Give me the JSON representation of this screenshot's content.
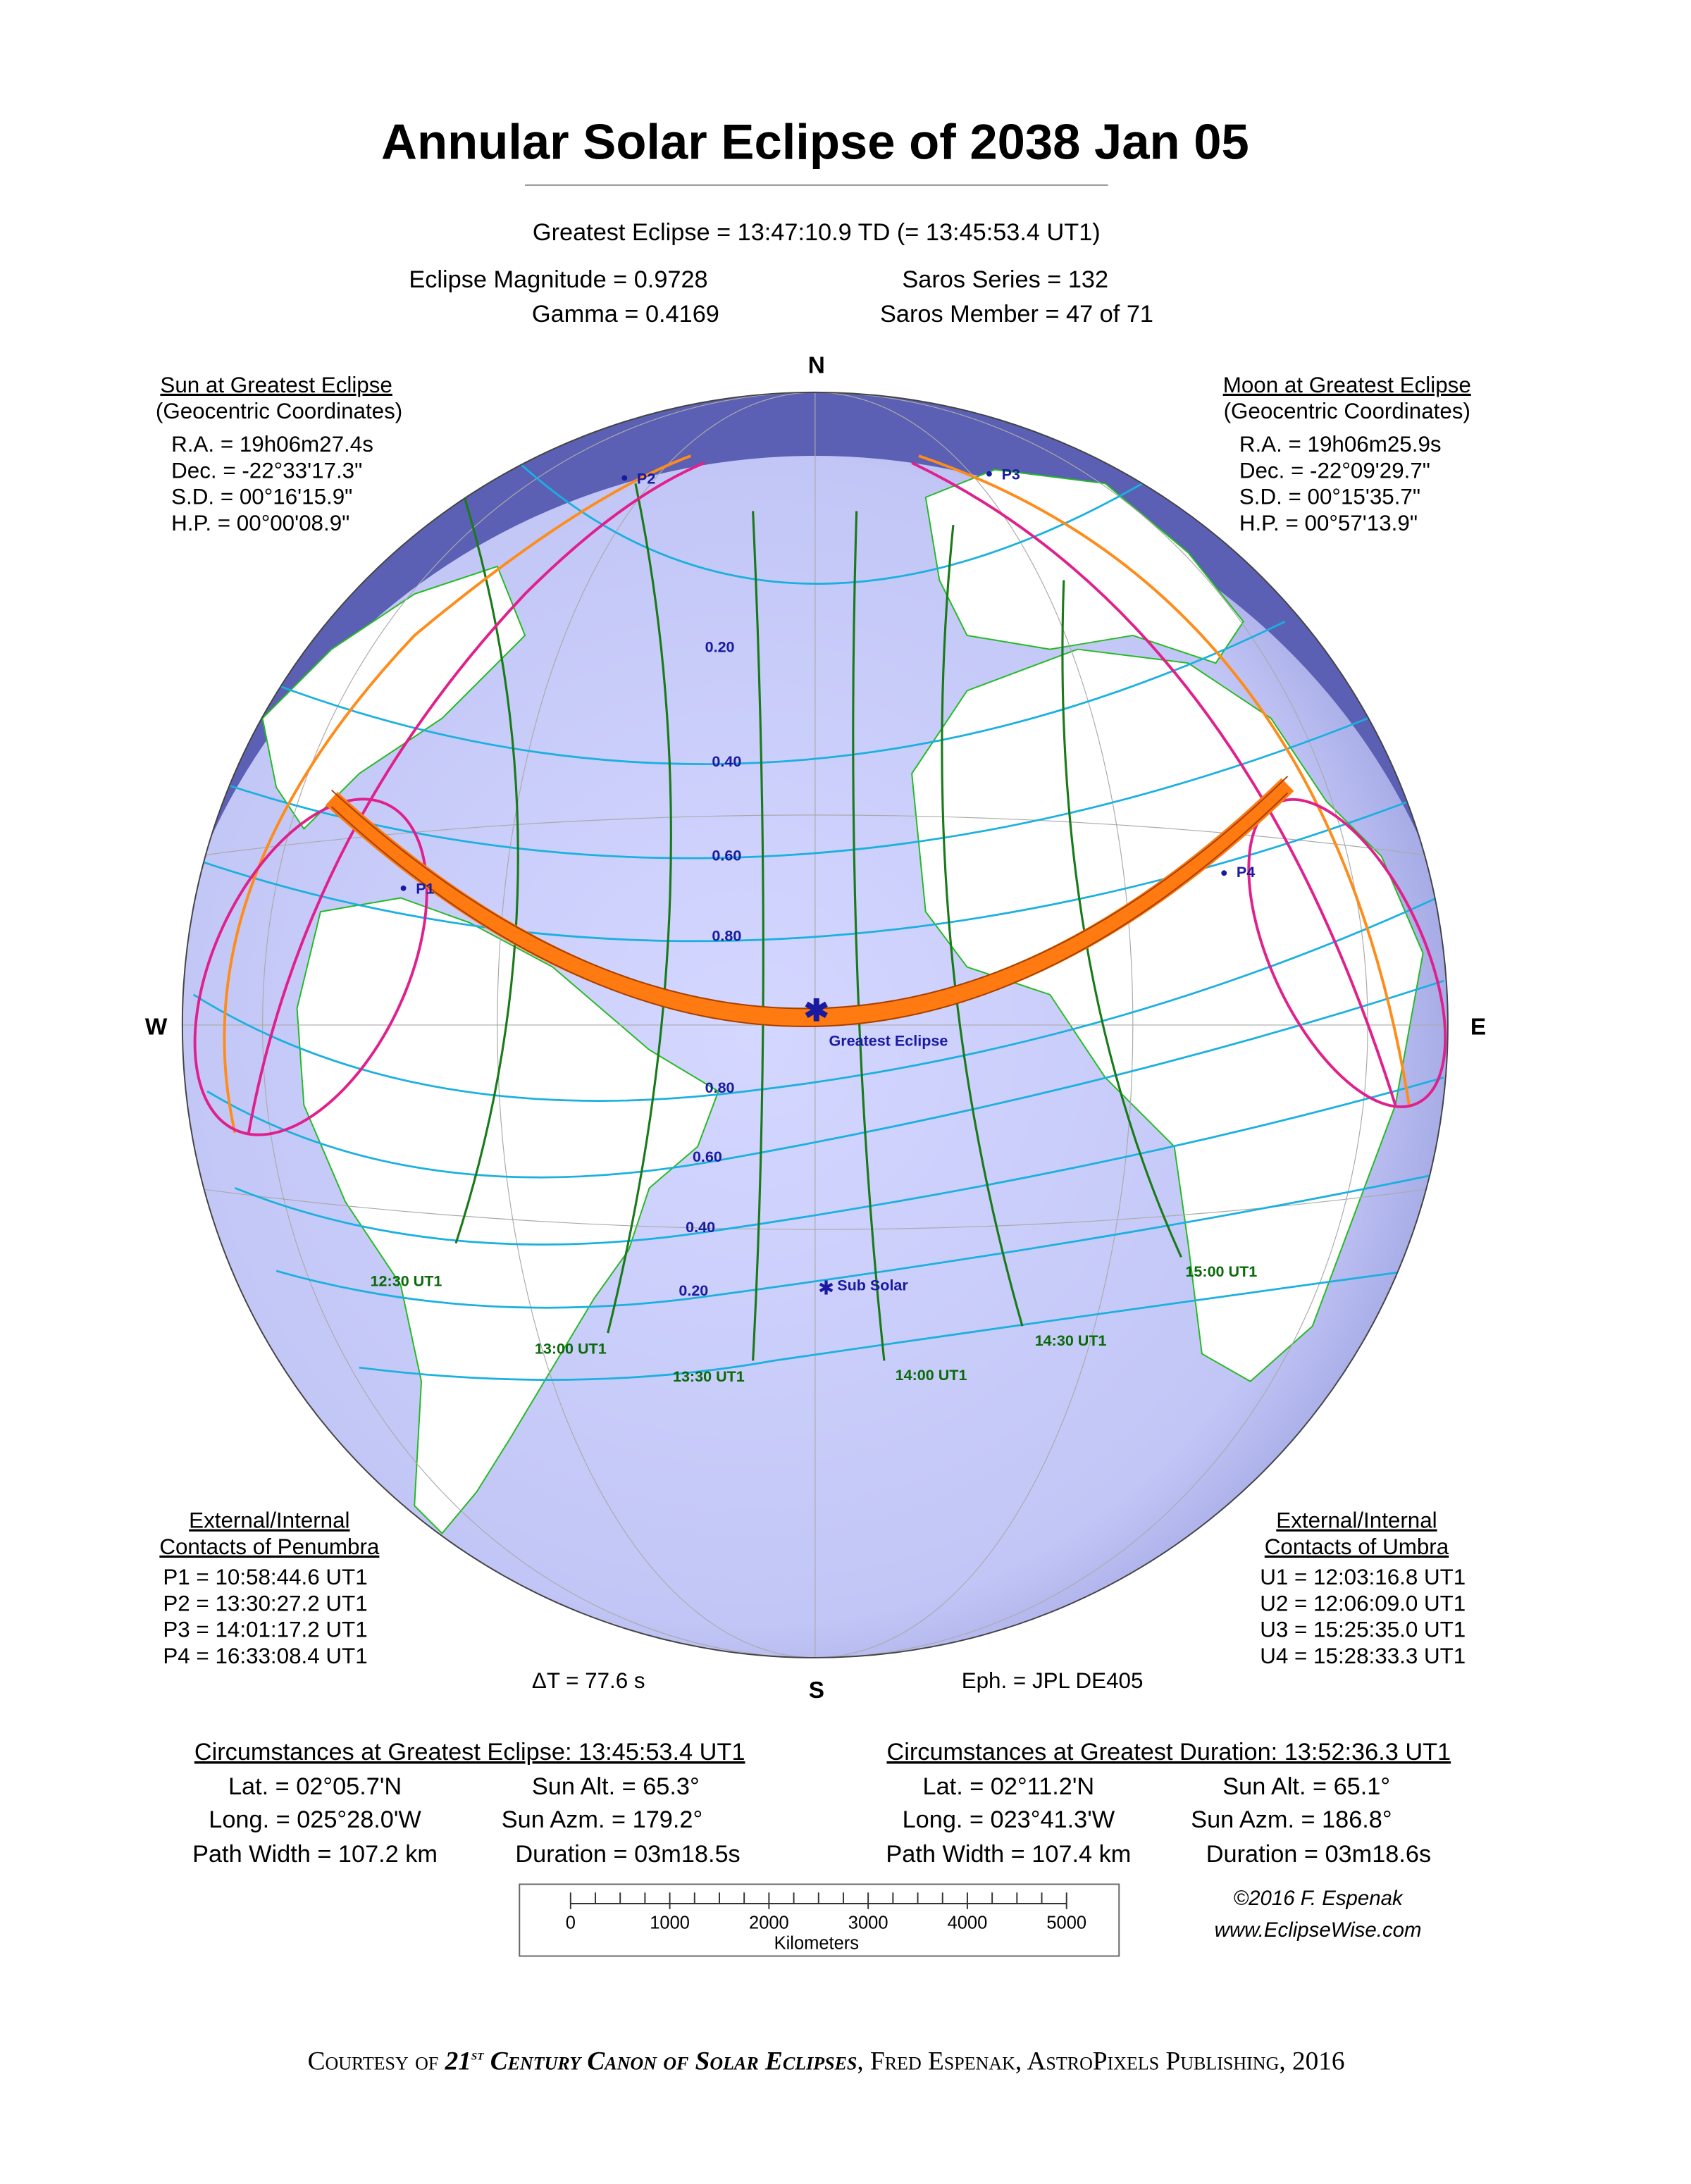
{
  "title": "Annular Solar Eclipse of  2038 Jan 05",
  "greatest_eclipse": "Greatest Eclipse =  13:47:10.9 TD   (= 13:45:53.4 UT1)",
  "parameters": {
    "magnitude": "Eclipse Magnitude =  0.9728",
    "gamma": "Gamma =  0.4169",
    "saros_series": "Saros Series =  132",
    "saros_member": "Saros Member =   47 of 71"
  },
  "sun": {
    "heading": "Sun at Greatest Eclipse",
    "subheading": "(Geocentric Coordinates)",
    "lines": [
      "R.A. = 19h06m27.4s",
      "Dec. = -22°33'17.3\"",
      "S.D. =  00°16'15.9\"",
      "H.P. =  00°00'08.9\""
    ]
  },
  "moon": {
    "heading": "Moon at Greatest Eclipse",
    "subheading": "(Geocentric Coordinates)",
    "lines": [
      "R.A. = 19h06m25.9s",
      "Dec. = -22°09'29.7\"",
      "S.D. =  00°15'35.7\"",
      "H.P. =  00°57'13.9\""
    ]
  },
  "penumbra": {
    "heading": [
      "External/Internal",
      "Contacts of Penumbra"
    ],
    "lines": [
      "P1 = 10:58:44.6 UT1",
      "P2 = 13:30:27.2 UT1",
      "P3 = 14:01:17.2 UT1",
      "P4 = 16:33:08.4 UT1"
    ]
  },
  "umbra": {
    "heading": [
      "External/Internal",
      "Contacts of Umbra"
    ],
    "lines": [
      "U1 = 12:03:16.8 UT1",
      "U2 = 12:06:09.0 UT1",
      "U3 = 15:25:35.0 UT1",
      "U4 = 15:28:33.3 UT1"
    ]
  },
  "delta_t": "ΔT =     77.6 s",
  "ephemeris": "Eph. = JPL DE405",
  "map": {
    "compass": {
      "n": "N",
      "s": "S",
      "w": "W",
      "e": "E"
    },
    "magnitude_labels": [
      "0.20",
      "0.40",
      "0.60",
      "0.80",
      "0.80",
      "0.60",
      "0.40",
      "0.20"
    ],
    "time_labels": [
      "12:30 UT1",
      "13:00 UT1",
      "13:30 UT1",
      "14:00 UT1",
      "14:30 UT1",
      "15:00 UT1"
    ],
    "contact_points": [
      "P1",
      "P2",
      "P3",
      "P4"
    ],
    "greatest_eclipse": "Greatest Eclipse",
    "sub_solar": "Sub Solar"
  },
  "circumstances_greatest_eclipse": {
    "heading": "Circumstances at Greatest Eclipse:  13:45:53.4 UT1",
    "rows": [
      [
        "Lat. =  02°05.7'N",
        "Sun Alt. =  65.3°"
      ],
      [
        "Long. = 025°28.0'W",
        "Sun Azm. = 179.2°"
      ],
      [
        "Path Width = 107.2 km",
        "Duration =  03m18.5s"
      ]
    ]
  },
  "circumstances_greatest_duration": {
    "heading": "Circumstances at Greatest Duration:  13:52:36.3 UT1",
    "rows": [
      [
        "Lat. =  02°11.2'N",
        "Sun Alt. =  65.1°"
      ],
      [
        "Long. = 023°41.3'W",
        "Sun Azm. = 186.8°"
      ],
      [
        "Path Width = 107.4 km",
        "Duration =  03m18.6s"
      ]
    ]
  },
  "scale": {
    "labels": [
      "0",
      "1000",
      "2000",
      "3000",
      "4000",
      "5000"
    ],
    "unit": "Kilometers"
  },
  "credit": [
    "©2016  F. Espenak",
    "www.EclipseWise.com"
  ],
  "courtesy": [
    "Courtesy of ",
    "21",
    "st",
    " Century Canon of Solar Eclipses",
    ", Fred Espenak, AstroPixels Publishing, 2016"
  ]
}
